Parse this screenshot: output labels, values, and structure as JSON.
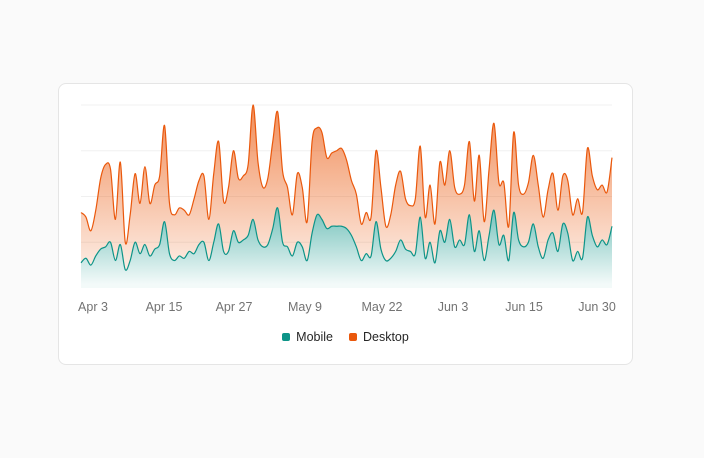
{
  "colors": {
    "mobile": "#0d9488",
    "desktop": "#ea580c"
  },
  "chart_data": {
    "type": "area",
    "stacked": true,
    "title": "",
    "xlabel": "",
    "ylabel": "",
    "grid": true,
    "legend_position": "bottom-center",
    "x_tick_labels": [
      "Apr 3",
      "Apr 15",
      "Apr 27",
      "May 9",
      "May 22",
      "Jun 3",
      "Jun 15",
      "Jun 30"
    ],
    "x_start": "2024-04-01",
    "x_end": "2024-06-30",
    "ylim": [
      0,
      800
    ],
    "series": [
      {
        "name": "Mobile",
        "values": [
          110,
          130,
          100,
          140,
          170,
          180,
          200,
          120,
          190,
          80,
          120,
          200,
          150,
          190,
          140,
          170,
          190,
          290,
          150,
          120,
          140,
          130,
          160,
          150,
          190,
          200,
          120,
          200,
          280,
          160,
          160,
          250,
          200,
          210,
          230,
          300,
          210,
          180,
          190,
          260,
          350,
          200,
          180,
          140,
          200,
          180,
          120,
          240,
          320,
          300,
          260,
          270,
          270,
          270,
          260,
          230,
          180,
          120,
          150,
          140,
          290,
          170,
          120,
          130,
          160,
          210,
          170,
          160,
          150,
          310,
          130,
          200,
          110,
          250,
          200,
          300,
          180,
          210,
          190,
          320,
          160,
          250,
          120,
          230,
          340,
          190,
          230,
          120,
          330,
          210,
          180,
          200,
          280,
          180,
          130,
          210,
          240,
          160,
          280,
          240,
          120,
          160,
          130,
          310,
          230,
          180,
          210,
          190,
          270
        ]
      },
      {
        "name": "Desktop",
        "values": [
          220,
          180,
          150,
          200,
          310,
          360,
          320,
          180,
          360,
          120,
          200,
          300,
          220,
          340,
          230,
          280,
          300,
          420,
          220,
          200,
          210,
          210,
          160,
          240,
          280,
          290,
          180,
          300,
          360,
          220,
          280,
          350,
          280,
          280,
          310,
          500,
          340,
          260,
          290,
          380,
          420,
          310,
          260,
          180,
          300,
          260,
          170,
          400,
          380,
          380,
          310,
          320,
          330,
          340,
          300,
          240,
          230,
          160,
          180,
          170,
          310,
          270,
          150,
          190,
          290,
          300,
          220,
          200,
          240,
          310,
          180,
          250,
          170,
          300,
          250,
          300,
          260,
          200,
          260,
          320,
          220,
          330,
          170,
          290,
          380,
          270,
          230,
          150,
          350,
          240,
          230,
          260,
          300,
          270,
          180,
          220,
          260,
          180,
          210,
          230,
          200,
          230,
          200,
          300,
          260,
          250,
          240,
          230,
          300
        ]
      }
    ]
  }
}
